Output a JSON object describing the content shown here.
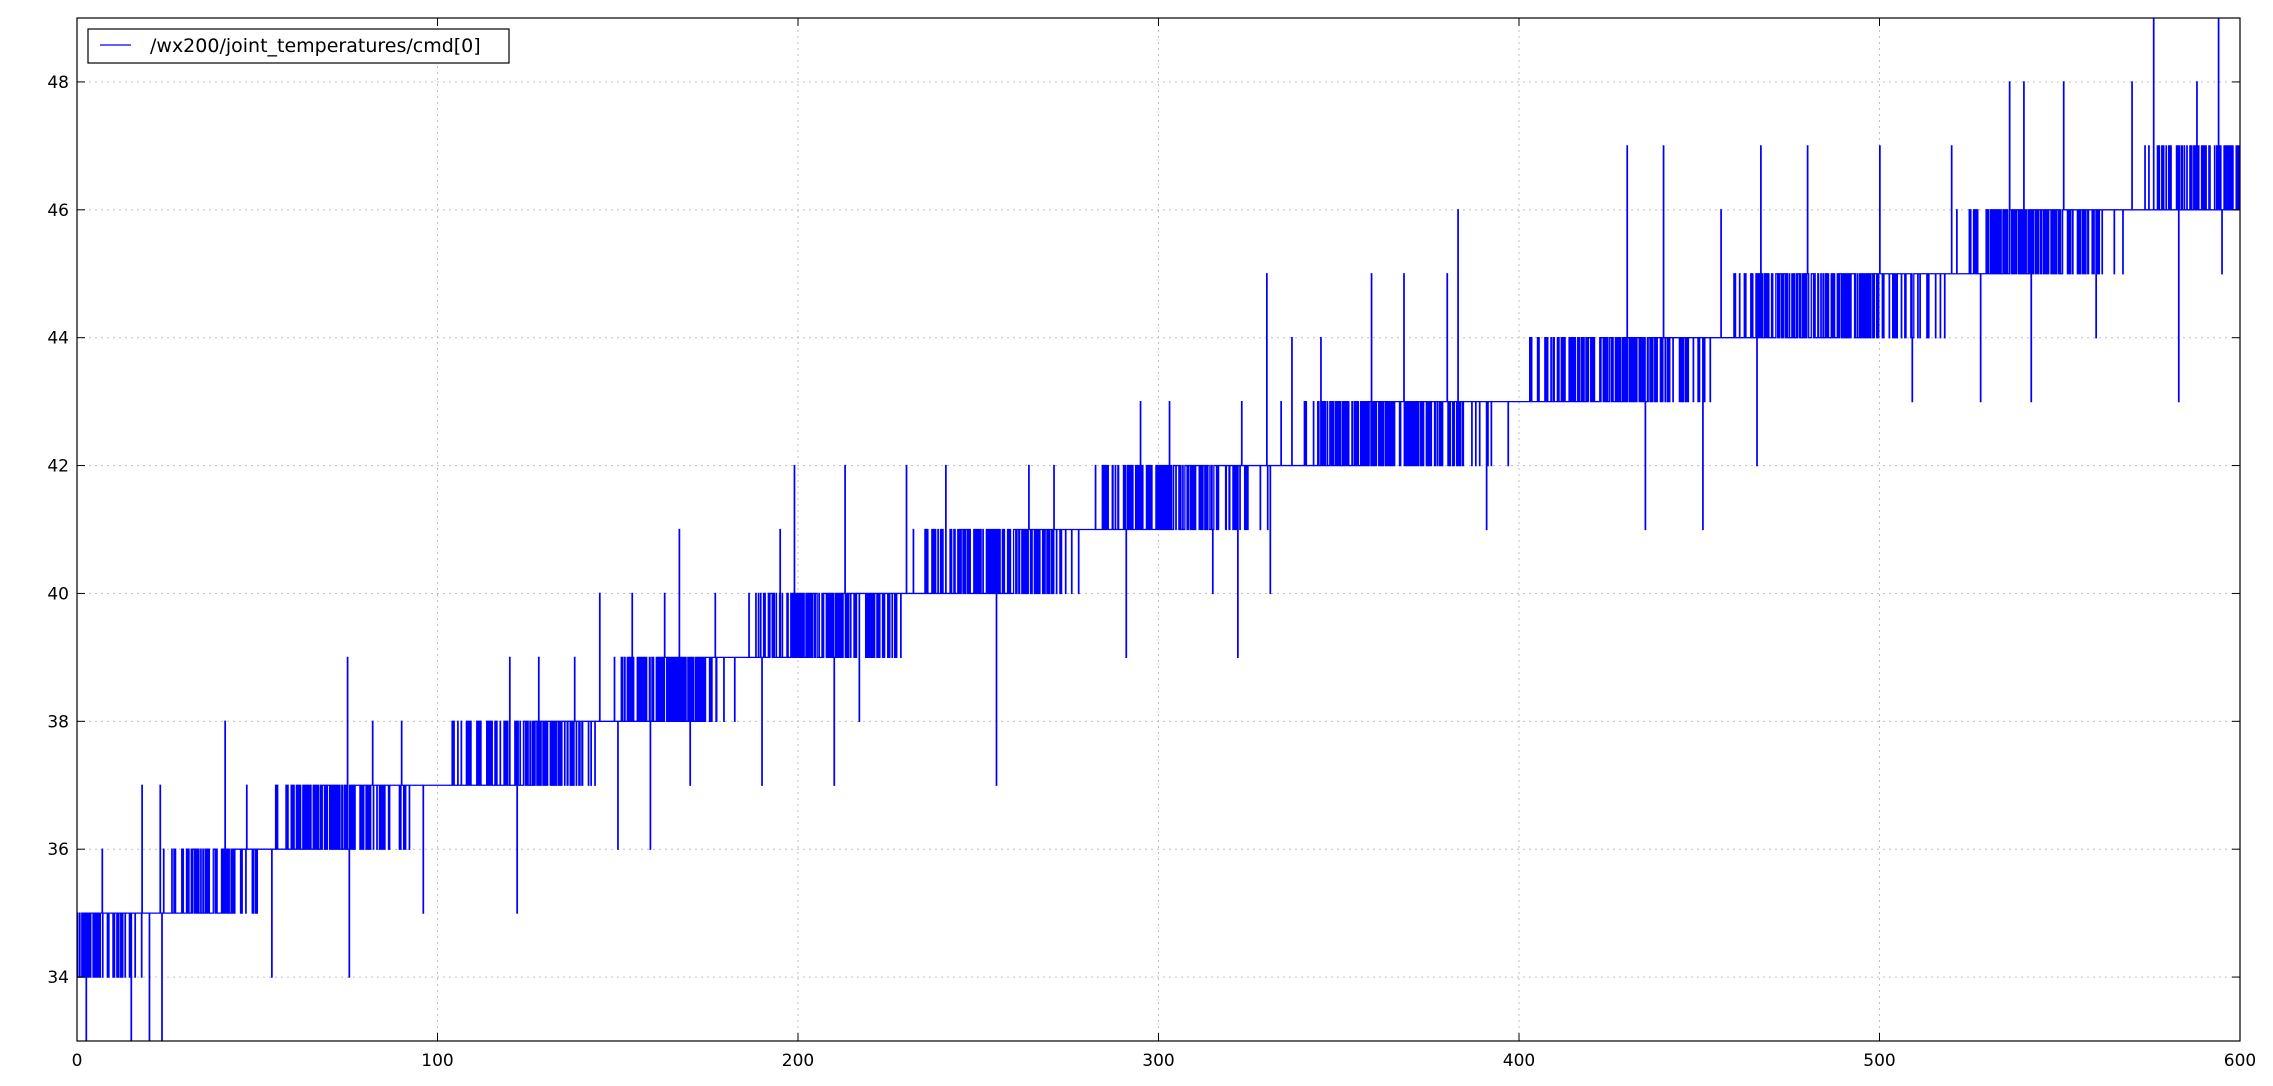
{
  "chart_data": {
    "type": "line",
    "title": "",
    "xlabel": "",
    "ylabel": "",
    "xlim": [
      0,
      600
    ],
    "ylim": [
      33,
      49
    ],
    "xticks": [
      0,
      100,
      200,
      300,
      400,
      500,
      600
    ],
    "yticks": [
      34,
      36,
      38,
      40,
      42,
      44,
      46,
      48
    ],
    "grid": true,
    "legend_position": "top-left",
    "colors": {
      "series": "#0000ff",
      "grid": "#bfbfbf",
      "axes": "#000000"
    },
    "series": [
      {
        "name": "/wx200/joint_temperatures/cmd[0]",
        "color": "#0000ff",
        "baseline_trend": [
          [
            0,
            34.5
          ],
          [
            20,
            35
          ],
          [
            40,
            35.5
          ],
          [
            60,
            36.3
          ],
          [
            80,
            36.7
          ],
          [
            100,
            37
          ],
          [
            120,
            37.3
          ],
          [
            140,
            37.8
          ],
          [
            160,
            38.4
          ],
          [
            180,
            38.9
          ],
          [
            200,
            39.4
          ],
          [
            220,
            39.7
          ],
          [
            240,
            40.2
          ],
          [
            260,
            40.6
          ],
          [
            280,
            41
          ],
          [
            300,
            41.5
          ],
          [
            320,
            41.8
          ],
          [
            340,
            42.1
          ],
          [
            360,
            42.6
          ],
          [
            380,
            42.8
          ],
          [
            400,
            43
          ],
          [
            420,
            43.5
          ],
          [
            440,
            43.7
          ],
          [
            460,
            44.1
          ],
          [
            480,
            44.5
          ],
          [
            500,
            44.7
          ],
          [
            520,
            45
          ],
          [
            540,
            45.5
          ],
          [
            560,
            45.8
          ],
          [
            580,
            46.2
          ],
          [
            600,
            46.5
          ]
        ],
        "spikes": [
          [
            2.5,
            33
          ],
          [
            7,
            36
          ],
          [
            15,
            33
          ],
          [
            18,
            37
          ],
          [
            20,
            33
          ],
          [
            23,
            37
          ],
          [
            23.5,
            33
          ],
          [
            41,
            38
          ],
          [
            47,
            37
          ],
          [
            54,
            34
          ],
          [
            75,
            39
          ],
          [
            75.5,
            34
          ],
          [
            82,
            38
          ],
          [
            90,
            38
          ],
          [
            96,
            35
          ],
          [
            104,
            38
          ],
          [
            108,
            38
          ],
          [
            112,
            38
          ],
          [
            120,
            39
          ],
          [
            122,
            35
          ],
          [
            128,
            39
          ],
          [
            138,
            39
          ],
          [
            145,
            40
          ],
          [
            150,
            36
          ],
          [
            154,
            40
          ],
          [
            159,
            36
          ],
          [
            163,
            40
          ],
          [
            167,
            41
          ],
          [
            170,
            37
          ],
          [
            177,
            40
          ],
          [
            190,
            37
          ],
          [
            195,
            41
          ],
          [
            199,
            42
          ],
          [
            210,
            37
          ],
          [
            213,
            42
          ],
          [
            217,
            38
          ],
          [
            230,
            42
          ],
          [
            232,
            41
          ],
          [
            241,
            42
          ],
          [
            246,
            41
          ],
          [
            255,
            37
          ],
          [
            264,
            42
          ],
          [
            271,
            42
          ],
          [
            291,
            39
          ],
          [
            295,
            43
          ],
          [
            303,
            43
          ],
          [
            315,
            40
          ],
          [
            322,
            39
          ],
          [
            323,
            43
          ],
          [
            330,
            45
          ],
          [
            331,
            40
          ],
          [
            337,
            44
          ],
          [
            345,
            44
          ],
          [
            359,
            45
          ],
          [
            368,
            45
          ],
          [
            380,
            45
          ],
          [
            383,
            46
          ],
          [
            391,
            41
          ],
          [
            430,
            47
          ],
          [
            435,
            41
          ],
          [
            440,
            47
          ],
          [
            451,
            41
          ],
          [
            456,
            46
          ],
          [
            466,
            42
          ],
          [
            467,
            47
          ],
          [
            480,
            47
          ],
          [
            500,
            47
          ],
          [
            509,
            43
          ],
          [
            520,
            47
          ],
          [
            528,
            43
          ],
          [
            536,
            48
          ],
          [
            540,
            48
          ],
          [
            542,
            43
          ],
          [
            551,
            48
          ],
          [
            560,
            44
          ],
          [
            570,
            48
          ],
          [
            576,
            49
          ],
          [
            583,
            43
          ],
          [
            588,
            48
          ],
          [
            594,
            49
          ],
          [
            595,
            45
          ]
        ]
      }
    ]
  }
}
